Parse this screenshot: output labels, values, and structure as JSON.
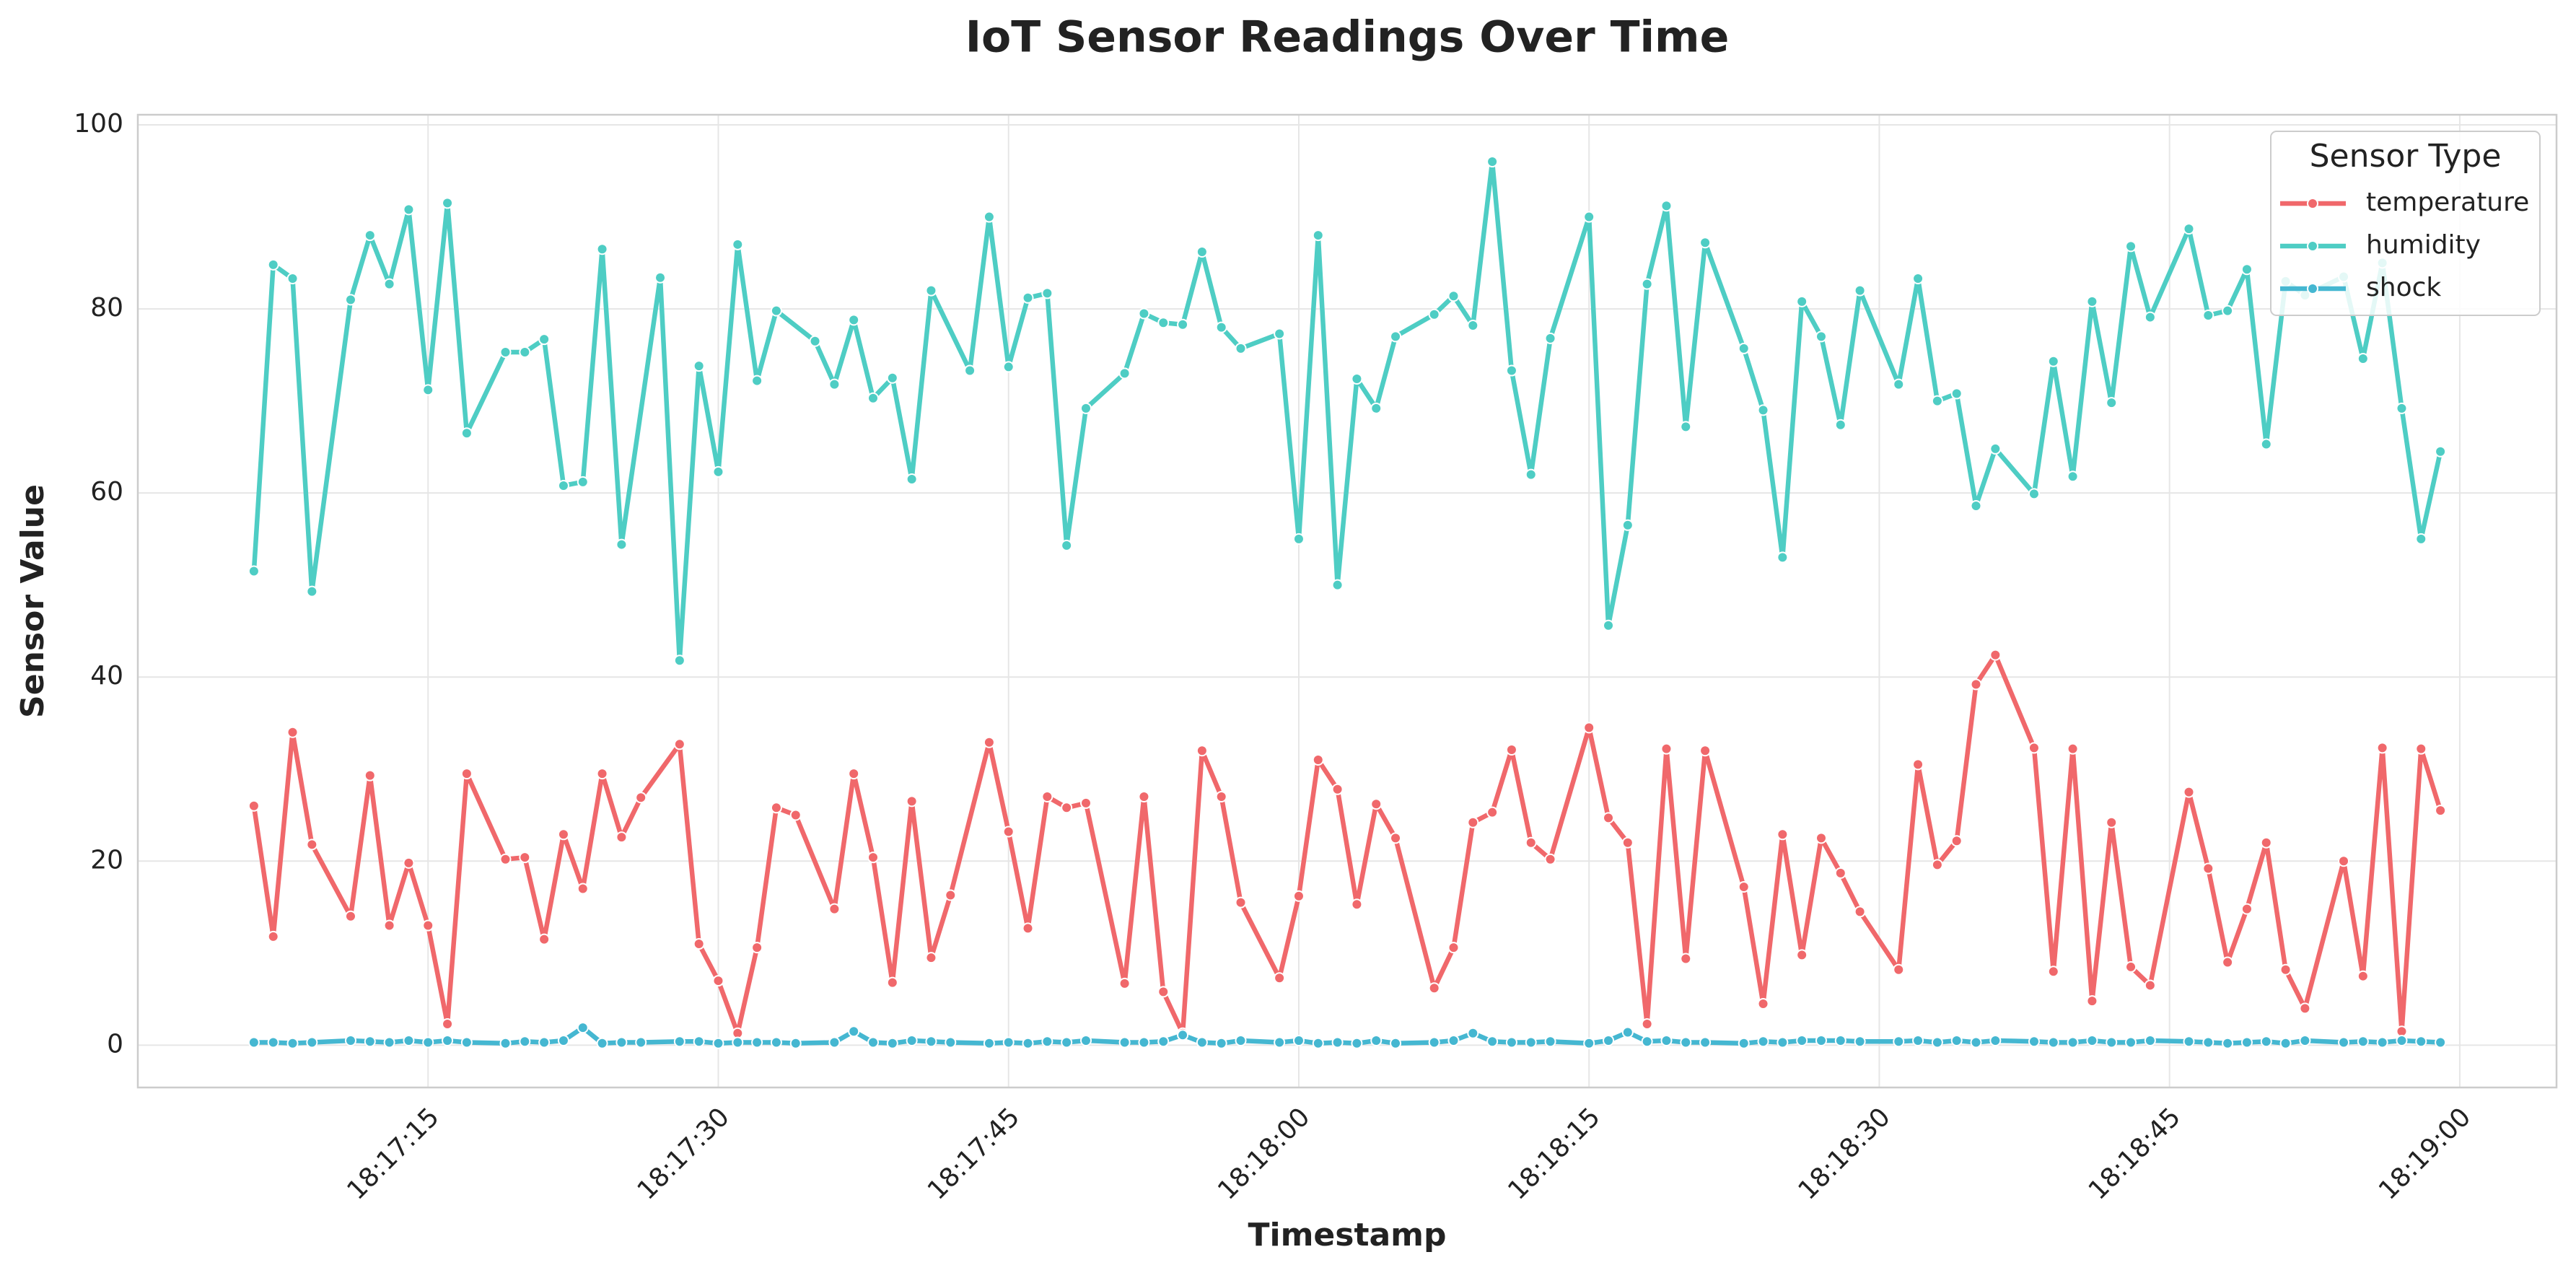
{
  "chart_data": {
    "type": "line",
    "title": "IoT Sensor Readings Over Time",
    "x_label": "Timestamp",
    "y_label": "Sensor Value",
    "legend_title": "Sensor Type",
    "legend_position": "upper right",
    "grid": true,
    "xlim": [
      "18:17:00",
      "18:19:05"
    ],
    "xticks": [
      "18:17:15",
      "18:17:30",
      "18:17:45",
      "18:18:00",
      "18:18:15",
      "18:18:30",
      "18:18:45",
      "18:19:00"
    ],
    "ylim": [
      -4.6,
      101.1
    ],
    "yticks": [
      0,
      20,
      40,
      60,
      80,
      100
    ],
    "series": [
      {
        "name": "temperature",
        "color": "#f0686b",
        "x": [
          "18:17:06",
          "18:17:07",
          "18:17:08",
          "18:17:09",
          "18:17:11",
          "18:17:12",
          "18:17:13",
          "18:17:14",
          "18:17:15",
          "18:17:16",
          "18:17:17",
          "18:17:19",
          "18:17:20",
          "18:17:21",
          "18:17:22",
          "18:17:23",
          "18:17:24",
          "18:17:25",
          "18:17:26",
          "18:17:28",
          "18:17:29",
          "18:17:30",
          "18:17:31",
          "18:17:32",
          "18:17:33",
          "18:17:34",
          "18:17:36",
          "18:17:37",
          "18:17:38",
          "18:17:39",
          "18:17:40",
          "18:17:41",
          "18:17:42",
          "18:17:44",
          "18:17:45",
          "18:17:46",
          "18:17:47",
          "18:17:48",
          "18:17:49",
          "18:17:51",
          "18:17:52",
          "18:17:53",
          "18:17:54",
          "18:17:55",
          "18:17:56",
          "18:17:57",
          "18:17:59",
          "18:18:00",
          "18:18:01",
          "18:18:02",
          "18:18:03",
          "18:18:04",
          "18:18:05",
          "18:18:07",
          "18:18:08",
          "18:18:09",
          "18:18:10",
          "18:18:11",
          "18:18:12",
          "18:18:13",
          "18:18:15",
          "18:18:16",
          "18:18:17",
          "18:18:18",
          "18:18:19",
          "18:18:20",
          "18:18:21",
          "18:18:23",
          "18:18:24",
          "18:18:25",
          "18:18:26",
          "18:18:27",
          "18:18:28",
          "18:18:29",
          "18:18:31",
          "18:18:32",
          "18:18:33",
          "18:18:34",
          "18:18:35",
          "18:18:36",
          "18:18:38",
          "18:18:39",
          "18:18:40",
          "18:18:41",
          "18:18:42",
          "18:18:43",
          "18:18:44",
          "18:18:46",
          "18:18:47",
          "18:18:48",
          "18:18:49",
          "18:18:50",
          "18:18:51",
          "18:18:52",
          "18:18:54",
          "18:18:55",
          "18:18:56",
          "18:18:57",
          "18:18:58",
          "18:18:59"
        ],
        "values": [
          26,
          11.8,
          34,
          21.8,
          14,
          29.3,
          13,
          19.8,
          13,
          2.3,
          29.5,
          20.2,
          20.4,
          11.5,
          22.9,
          17,
          29.5,
          22.6,
          26.9,
          32.7,
          11,
          7,
          1.3,
          10.6,
          25.8,
          25,
          14.8,
          29.5,
          20.4,
          6.8,
          26.5,
          9.5,
          16.3,
          32.9,
          23.2,
          12.7,
          27,
          25.8,
          26.3,
          6.7,
          27,
          5.8,
          1.3,
          32,
          27,
          15.5,
          7.3,
          16.2,
          31,
          27.8,
          15.3,
          26.2,
          22.5,
          6.2,
          10.6,
          24.2,
          25.3,
          32.1,
          22,
          20.2,
          34.5,
          24.7,
          22,
          2.3,
          32.2,
          9.4,
          32,
          17.2,
          4.5,
          22.9,
          9.8,
          22.5,
          18.7,
          14.5,
          8.2,
          30.5,
          19.6,
          22.2,
          39.2,
          42.4,
          32.3,
          8,
          32.2,
          4.8,
          24.2,
          8.5,
          6.5,
          27.5,
          19.2,
          9,
          14.8,
          22,
          8.2,
          4,
          20,
          7.5,
          32.3,
          1.5,
          32.2,
          25.5
        ]
      },
      {
        "name": "humidity",
        "color": "#4ecdc4",
        "x": [
          "18:17:06",
          "18:17:07",
          "18:17:08",
          "18:17:09",
          "18:17:11",
          "18:17:12",
          "18:17:13",
          "18:17:14",
          "18:17:15",
          "18:17:16",
          "18:17:17",
          "18:17:19",
          "18:17:20",
          "18:17:21",
          "18:17:22",
          "18:17:23",
          "18:17:24",
          "18:17:25",
          "18:17:27",
          "18:17:28",
          "18:17:29",
          "18:17:30",
          "18:17:31",
          "18:17:32",
          "18:17:33",
          "18:17:35",
          "18:17:36",
          "18:17:37",
          "18:17:38",
          "18:17:39",
          "18:17:40",
          "18:17:41",
          "18:17:43",
          "18:17:44",
          "18:17:45",
          "18:17:46",
          "18:17:47",
          "18:17:48",
          "18:17:49",
          "18:17:51",
          "18:17:52",
          "18:17:53",
          "18:17:54",
          "18:17:55",
          "18:17:56",
          "18:17:57",
          "18:17:59",
          "18:18:00",
          "18:18:01",
          "18:18:02",
          "18:18:03",
          "18:18:04",
          "18:18:05",
          "18:18:07",
          "18:18:08",
          "18:18:09",
          "18:18:10",
          "18:18:11",
          "18:18:12",
          "18:18:13",
          "18:18:15",
          "18:18:16",
          "18:18:17",
          "18:18:18",
          "18:18:19",
          "18:18:20",
          "18:18:21",
          "18:18:23",
          "18:18:24",
          "18:18:25",
          "18:18:26",
          "18:18:27",
          "18:18:28",
          "18:18:29",
          "18:18:31",
          "18:18:32",
          "18:18:33",
          "18:18:34",
          "18:18:35",
          "18:18:36",
          "18:18:38",
          "18:18:39",
          "18:18:40",
          "18:18:41",
          "18:18:42",
          "18:18:43",
          "18:18:44",
          "18:18:46",
          "18:18:47",
          "18:18:48",
          "18:18:49",
          "18:18:50",
          "18:18:51",
          "18:18:52",
          "18:18:54",
          "18:18:55",
          "18:18:56",
          "18:18:57",
          "18:18:58",
          "18:18:59"
        ],
        "values": [
          51.5,
          84.8,
          83.3,
          49.3,
          81,
          88,
          82.7,
          90.8,
          71.2,
          91.5,
          66.5,
          75.3,
          75.3,
          76.7,
          60.8,
          61.2,
          86.5,
          54.4,
          83.4,
          41.8,
          73.8,
          62.3,
          87,
          72.2,
          79.8,
          76.5,
          71.8,
          78.8,
          70.3,
          72.5,
          61.5,
          82,
          73.3,
          90,
          73.7,
          81.2,
          81.7,
          54.3,
          69.2,
          73,
          79.5,
          78.5,
          78.3,
          86.2,
          78,
          75.7,
          77.3,
          55,
          88,
          50,
          72.4,
          69.2,
          77,
          79.4,
          81.4,
          78.2,
          96,
          73.3,
          62,
          76.8,
          90,
          45.6,
          56.5,
          82.7,
          91.2,
          67.2,
          87.2,
          75.7,
          69,
          53,
          80.8,
          77,
          67.4,
          82,
          71.8,
          83.3,
          70,
          70.8,
          58.6,
          64.8,
          59.9,
          74.3,
          61.8,
          80.8,
          69.8,
          86.8,
          79.1,
          88.7,
          79.3,
          79.8,
          84.3,
          65.3,
          83,
          81.5,
          83.5,
          74.6,
          85,
          69.2,
          55,
          64.5
        ]
      },
      {
        "name": "shock",
        "color": "#45b7d1",
        "x": [
          "18:17:06",
          "18:17:07",
          "18:17:08",
          "18:17:09",
          "18:17:11",
          "18:17:12",
          "18:17:13",
          "18:17:14",
          "18:17:15",
          "18:17:16",
          "18:17:17",
          "18:17:19",
          "18:17:20",
          "18:17:21",
          "18:17:22",
          "18:17:23",
          "18:17:24",
          "18:17:25",
          "18:17:26",
          "18:17:28",
          "18:17:29",
          "18:17:30",
          "18:17:31",
          "18:17:32",
          "18:17:33",
          "18:17:34",
          "18:17:36",
          "18:17:37",
          "18:17:38",
          "18:17:39",
          "18:17:40",
          "18:17:41",
          "18:17:42",
          "18:17:44",
          "18:17:45",
          "18:17:46",
          "18:17:47",
          "18:17:48",
          "18:17:49",
          "18:17:51",
          "18:17:52",
          "18:17:53",
          "18:17:54",
          "18:17:55",
          "18:17:56",
          "18:17:57",
          "18:17:59",
          "18:18:00",
          "18:18:01",
          "18:18:02",
          "18:18:03",
          "18:18:04",
          "18:18:05",
          "18:18:07",
          "18:18:08",
          "18:18:09",
          "18:18:10",
          "18:18:11",
          "18:18:12",
          "18:18:13",
          "18:18:15",
          "18:18:16",
          "18:18:17",
          "18:18:18",
          "18:18:19",
          "18:18:20",
          "18:18:21",
          "18:18:23",
          "18:18:24",
          "18:18:25",
          "18:18:26",
          "18:18:27",
          "18:18:28",
          "18:18:29",
          "18:18:31",
          "18:18:32",
          "18:18:33",
          "18:18:34",
          "18:18:35",
          "18:18:36",
          "18:18:38",
          "18:18:39",
          "18:18:40",
          "18:18:41",
          "18:18:42",
          "18:18:43",
          "18:18:44",
          "18:18:46",
          "18:18:47",
          "18:18:48",
          "18:18:49",
          "18:18:50",
          "18:18:51",
          "18:18:52",
          "18:18:54",
          "18:18:55",
          "18:18:56",
          "18:18:57",
          "18:18:58",
          "18:18:59"
        ],
        "values": [
          0.3,
          0.3,
          0.2,
          0.3,
          0.5,
          0.4,
          0.3,
          0.5,
          0.3,
          0.5,
          0.3,
          0.2,
          0.4,
          0.3,
          0.5,
          1.9,
          0.2,
          0.3,
          0.3,
          0.4,
          0.4,
          0.2,
          0.3,
          0.3,
          0.3,
          0.2,
          0.3,
          1.5,
          0.3,
          0.2,
          0.5,
          0.4,
          0.3,
          0.2,
          0.3,
          0.2,
          0.4,
          0.3,
          0.5,
          0.3,
          0.3,
          0.4,
          1.1,
          0.3,
          0.2,
          0.5,
          0.3,
          0.5,
          0.2,
          0.3,
          0.2,
          0.5,
          0.2,
          0.3,
          0.5,
          1.3,
          0.4,
          0.3,
          0.3,
          0.4,
          0.2,
          0.5,
          1.4,
          0.4,
          0.5,
          0.3,
          0.3,
          0.2,
          0.4,
          0.3,
          0.5,
          0.5,
          0.5,
          0.4,
          0.4,
          0.5,
          0.3,
          0.5,
          0.3,
          0.5,
          0.4,
          0.3,
          0.3,
          0.5,
          0.3,
          0.3,
          0.5,
          0.4,
          0.3,
          0.2,
          0.3,
          0.4,
          0.2,
          0.5,
          0.3,
          0.4,
          0.3,
          0.5,
          0.4,
          0.3
        ]
      }
    ]
  }
}
